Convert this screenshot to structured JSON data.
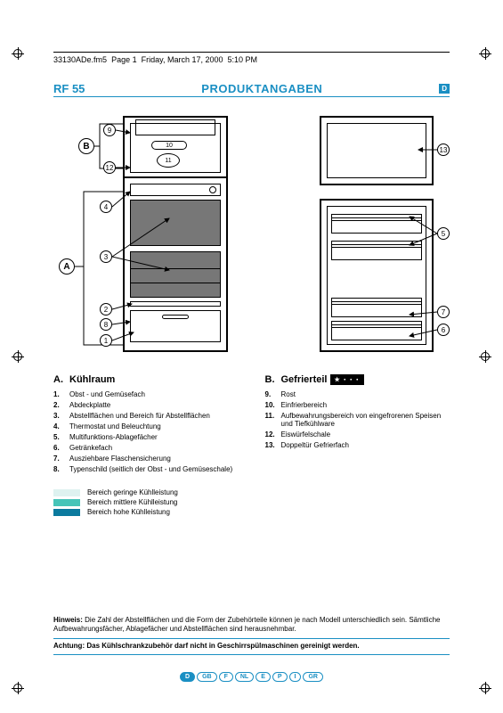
{
  "header": {
    "filename": "33130ADe.fm5",
    "page": "Page 1",
    "date": "Friday, March 17, 2000",
    "time": "5:10 PM"
  },
  "title": {
    "model": "RF 55",
    "heading": "PRODUKTANGABEN",
    "lang": "D"
  },
  "callouts": {
    "letters": {
      "A": "A",
      "B": "B"
    },
    "numbers": {
      "n1": "1",
      "n2": "2",
      "n3": "3",
      "n4": "4",
      "n5": "5",
      "n6": "6",
      "n7": "7",
      "n8": "8",
      "n9": "9",
      "n10": "10",
      "n11": "11",
      "n12": "12",
      "n13": "13"
    }
  },
  "sections": {
    "A": {
      "letter": "A.",
      "title": "Kühlraum",
      "items": [
        {
          "n": "1.",
          "t": "Obst - und Gemüsefach"
        },
        {
          "n": "2.",
          "t": "Abdeckplatte"
        },
        {
          "n": "3.",
          "t": "Abstellflächen und Bereich für Abstellflächen"
        },
        {
          "n": "4.",
          "t": "Thermostat und Beleuchtung"
        },
        {
          "n": "5.",
          "t": "Multifunktions-Ablagefächer"
        },
        {
          "n": "6.",
          "t": "Getränkefach"
        },
        {
          "n": "7.",
          "t": "Ausziehbare Flaschensicherung"
        },
        {
          "n": "8.",
          "t": "Typenschild (seitlich der Obst - und Gemüseschale)"
        }
      ]
    },
    "B": {
      "letter": "B.",
      "title": "Gefrierteil",
      "star": "★ ・・・",
      "items": [
        {
          "n": "9.",
          "t": "Rost"
        },
        {
          "n": "10.",
          "t": "Einfrierbereich"
        },
        {
          "n": "11.",
          "t": "Aufbewahrungsbereich von eingefrorenen Speisen und Tiefkühlware"
        },
        {
          "n": "12.",
          "t": "Eiswürfelschale"
        },
        {
          "n": "13.",
          "t": "Doppeltür Gefrierfach"
        }
      ]
    }
  },
  "colorLegend": [
    {
      "color": "#def2f0",
      "text": "Bereich geringe Kühlleistung"
    },
    {
      "color": "#46c4b8",
      "text": "Bereich mittlere Kühlleistung"
    },
    {
      "color": "#0b7a9e",
      "text": "Bereich hohe Kühlleistung"
    }
  ],
  "notes": {
    "hint_label": "Hinweis:",
    "hint": "Die Zahl der Abstellflächen und die Form der Zubehörteile können je nach Modell unterschiedlich sein. Sämtliche Aufbewahrungsfächer, Ablagefächer und Abstellflächen sind herausnehmbar.",
    "warn_label": "Achtung:",
    "warn": "Das Kühlschrankzubehör darf nicht in Geschirrspülmaschinen gereinigt werden."
  },
  "langs": [
    "D",
    "GB",
    "F",
    "NL",
    "E",
    "P",
    "I",
    "GR"
  ],
  "active_lang": "D",
  "colors": {
    "accent": "#1a8fc3"
  }
}
